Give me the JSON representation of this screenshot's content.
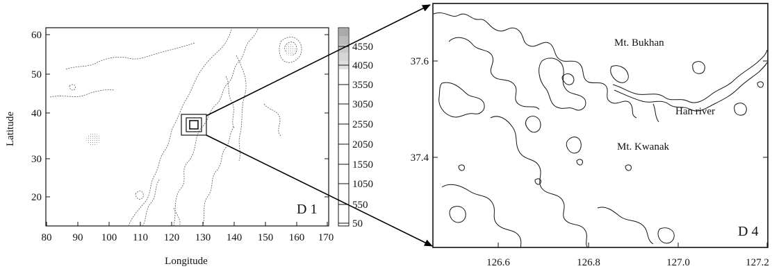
{
  "left_panel": {
    "x_axis": {
      "title": "Longitude",
      "ticks": [
        "80",
        "90",
        "100",
        "110",
        "120",
        "130",
        "140",
        "150",
        "160",
        "170"
      ]
    },
    "y_axis": {
      "title": "Latitude",
      "ticks": [
        "20",
        "30",
        "40",
        "50",
        "60"
      ]
    },
    "domain_label": "D 1",
    "colorbar": {
      "ticks": [
        "4550",
        "4050",
        "3550",
        "3050",
        "2550",
        "2050",
        "1550",
        "1050",
        "550",
        "50"
      ]
    }
  },
  "right_panel": {
    "x_axis": {
      "ticks": [
        "126.6",
        "126.8",
        "127.0",
        "127.2"
      ]
    },
    "y_axis": {
      "ticks": [
        "37.6",
        "37.4"
      ]
    },
    "domain_label": "D 4",
    "places": [
      {
        "name": "Mt. Bukhan"
      },
      {
        "name": "Han river"
      },
      {
        "name": "Mt. Kwanak"
      }
    ]
  },
  "colors": {
    "line": "#111111",
    "stipple": "#c8c8c8",
    "arrow": "#000000"
  }
}
